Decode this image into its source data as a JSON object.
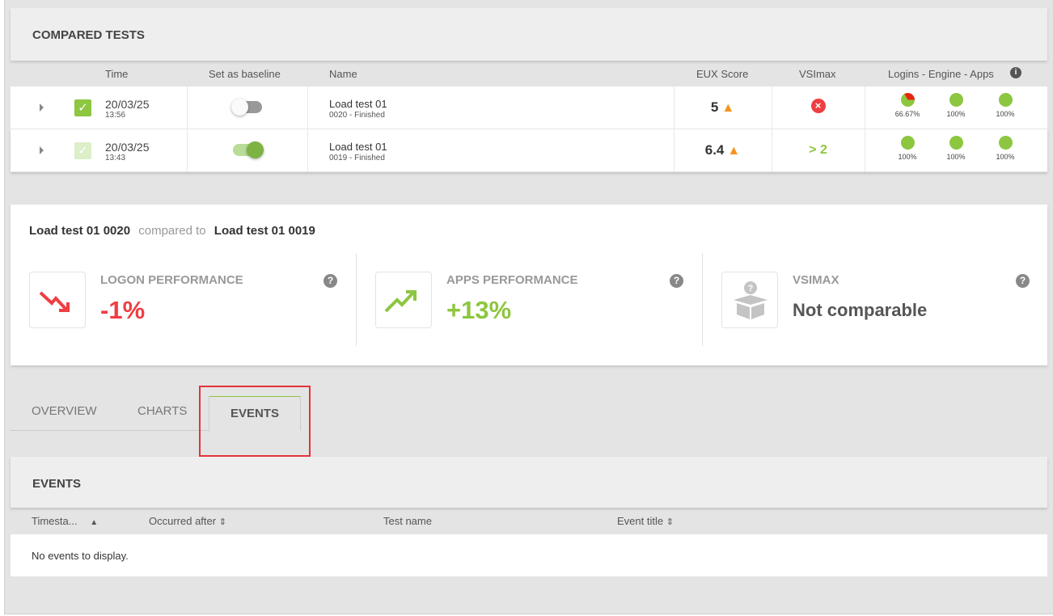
{
  "compared": {
    "title": "COMPARED TESTS",
    "columns": {
      "time": "Time",
      "baseline": "Set as baseline",
      "name": "Name",
      "eux": "EUX Score",
      "vsimax": "VSImax",
      "lea": "Logins - Engine - Apps"
    },
    "rows": [
      {
        "date": "20/03/25",
        "time": "13:56",
        "checked": true,
        "baseline": false,
        "name": "Load test 01",
        "sub": "0020 - Finished",
        "eux": "5",
        "vsimax_icon": "error-circle-icon",
        "vsimax": "",
        "logins": "66.67%",
        "engine": "100%",
        "apps": "100%",
        "logins_fraction": 0.6667
      },
      {
        "date": "20/03/25",
        "time": "13:43",
        "checked": true,
        "baseline": true,
        "name": "Load test 01",
        "sub": "0019 - Finished",
        "eux": "6.4",
        "vsimax": "> 2",
        "logins": "100%",
        "engine": "100%",
        "apps": "100%",
        "logins_fraction": 1
      }
    ]
  },
  "summary": {
    "left": "Load test 01 0020",
    "mid": "compared to",
    "right": "Load test 01 0019",
    "kpis": [
      {
        "label": "LOGON PERFORMANCE",
        "value": "-1%",
        "color": "#ef3e42",
        "icon": "trend-down-icon"
      },
      {
        "label": "APPS PERFORMANCE",
        "value": "+13%",
        "color": "#8dc63f",
        "icon": "trend-up-icon"
      },
      {
        "label": "VSIMAX",
        "value": "Not comparable",
        "color": "#555555",
        "icon": "unknown-box-icon"
      }
    ]
  },
  "tabs": [
    {
      "label": "OVERVIEW"
    },
    {
      "label": "CHARTS"
    },
    {
      "label": "EVENTS",
      "active": true
    }
  ],
  "events": {
    "title": "EVENTS",
    "columns": {
      "timestamp": "Timesta...",
      "occurred": "Occurred after",
      "test": "Test name",
      "title": "Event title"
    },
    "empty": "No events to display."
  },
  "colors": {
    "accent": "#8dc63f",
    "error": "#ef3e42",
    "warning": "#f7941d",
    "highlight": "#e8323c"
  }
}
